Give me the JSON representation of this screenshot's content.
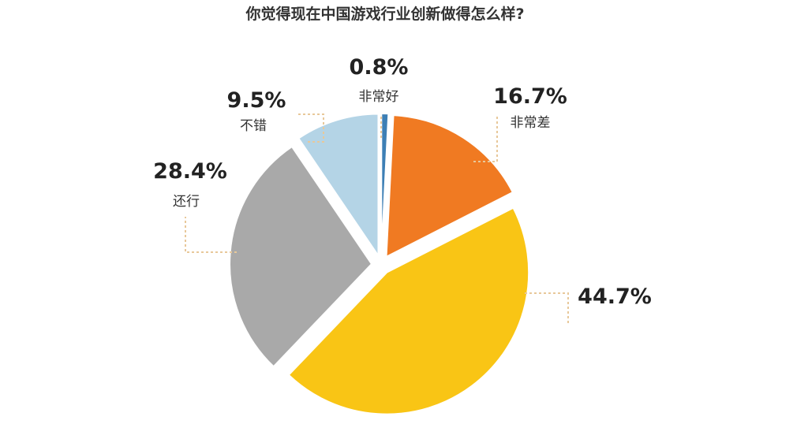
{
  "chart_data": {
    "type": "pie",
    "title": "你觉得现在中国游戏行业创新做得怎么样?",
    "slices": [
      {
        "label": "非常好",
        "value": 0.8,
        "value_label": "0.8%",
        "color": "#3d7fb5"
      },
      {
        "label": "非常差",
        "value": 16.7,
        "value_label": "16.7%",
        "color": "#f07a22"
      },
      {
        "label": "",
        "value": 44.7,
        "value_label": "44.7%",
        "color": "#f9c515"
      },
      {
        "label": "还行",
        "value": 28.4,
        "value_label": "28.4%",
        "color": "#a9a9a9"
      },
      {
        "label": "不错",
        "value": 9.5,
        "value_label": "9.5%",
        "color": "#b4d4e6"
      }
    ],
    "start": "12 o'clock, clockwise",
    "exploded": true
  }
}
